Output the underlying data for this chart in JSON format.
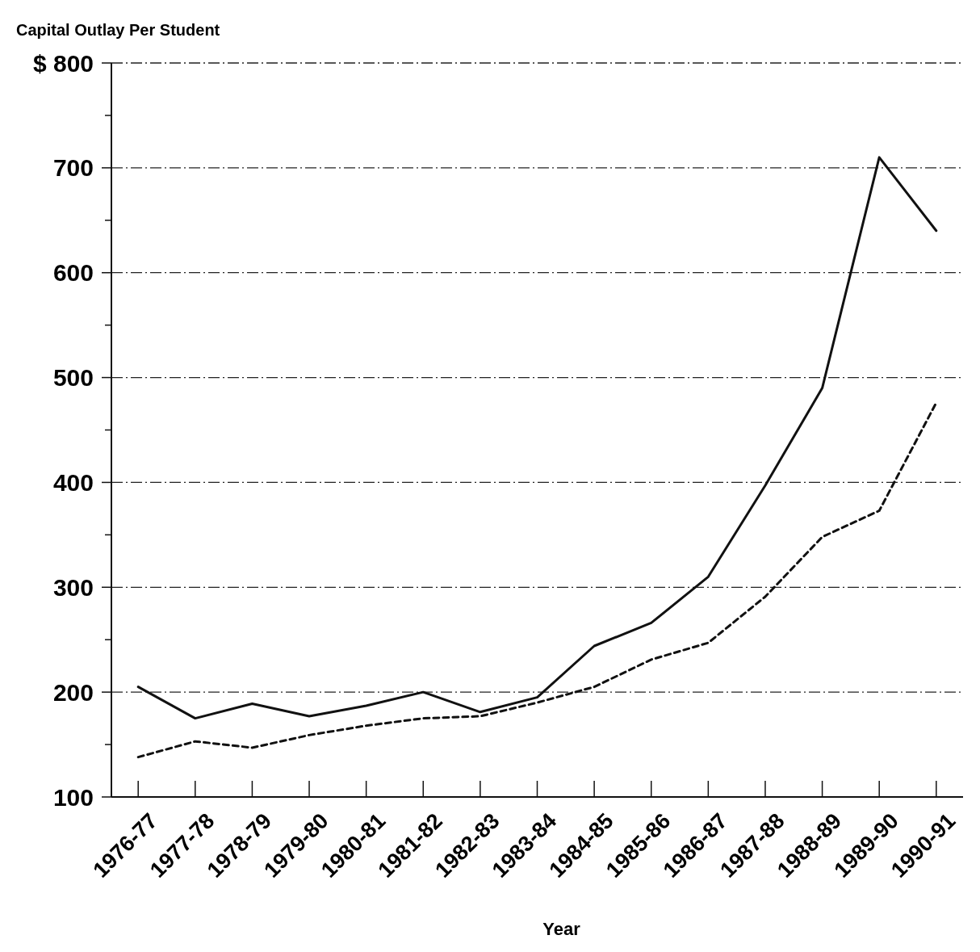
{
  "chart_data": {
    "type": "line",
    "title": "Capital Outlay Per Student",
    "xlabel": "Year",
    "categories": [
      "1976-77",
      "1977-78",
      "1978-79",
      "1979-80",
      "1980-81",
      "1981-82",
      "1982-83",
      "1983-84",
      "1984-85",
      "1985-86",
      "1986-87",
      "1987-88",
      "1988-89",
      "1989-90",
      "1990-91"
    ],
    "series": [
      {
        "color": "#111111",
        "line_style": "solid",
        "values": [
          205,
          175,
          189,
          177,
          187,
          200,
          181,
          195,
          244,
          266,
          310,
          397,
          490,
          710,
          640
        ]
      },
      {
        "color": "#111111",
        "line_style": "dashed",
        "values": [
          138,
          153,
          147,
          159,
          168,
          175,
          177,
          190,
          205,
          231,
          247,
          291,
          348,
          373,
          476
        ]
      }
    ],
    "ylim": [
      100,
      800
    ],
    "yticks": [
      100,
      {
        "value": 150,
        "label": null
      },
      200,
      {
        "value": 250,
        "label": null
      },
      300,
      {
        "value": 350,
        "label": null
      },
      400,
      {
        "value": 450,
        "label": null
      },
      500,
      {
        "value": 550,
        "label": null
      },
      600,
      {
        "value": 650,
        "label": null
      },
      700,
      {
        "value": 750,
        "label": null
      },
      {
        "value": 800,
        "label": "$ 800"
      }
    ],
    "grid": "y",
    "marker": "none"
  }
}
